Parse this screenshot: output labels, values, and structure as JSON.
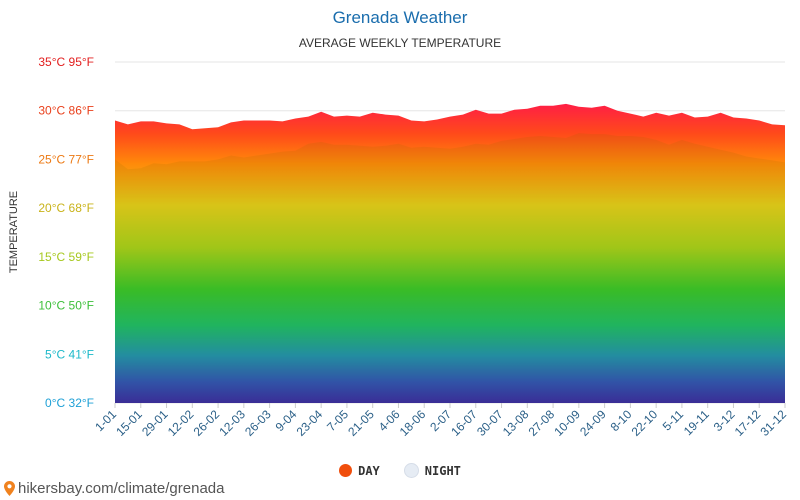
{
  "page": {
    "title": "Grenada Weather",
    "subtitle": "AVERAGE WEEKLY TEMPERATURE",
    "watermark": "hikersbay.com/climate/grenada"
  },
  "legend": {
    "day_label": "DAY",
    "night_label": "NIGHT",
    "day_color": "#f04e0c",
    "night_color": "#e6ecf4"
  },
  "chart_data": {
    "type": "area",
    "title": "Grenada Weather",
    "subtitle": "AVERAGE WEEKLY TEMPERATURE",
    "ylabel": "TEMPERATURE",
    "xlabel": "",
    "ylim": [
      0,
      35
    ],
    "y_ticks": [
      {
        "value": 0,
        "label": "0°C 32°F",
        "color": "#1ea0d6"
      },
      {
        "value": 5,
        "label": "5°C 41°F",
        "color": "#1db9c9"
      },
      {
        "value": 10,
        "label": "10°C 50°F",
        "color": "#3cbf3a"
      },
      {
        "value": 15,
        "label": "15°C 59°F",
        "color": "#a6c81e"
      },
      {
        "value": 20,
        "label": "20°C 68°F",
        "color": "#c9b31a"
      },
      {
        "value": 25,
        "label": "25°C 77°F",
        "color": "#ec7a15"
      },
      {
        "value": 30,
        "label": "30°C 86°F",
        "color": "#e9401c"
      },
      {
        "value": 35,
        "label": "35°C 95°F",
        "color": "#e21d1d"
      }
    ],
    "x_tick_labels": [
      "1-01",
      "15-01",
      "29-01",
      "12-02",
      "26-02",
      "12-03",
      "26-03",
      "9-04",
      "23-04",
      "7-05",
      "21-05",
      "4-06",
      "18-06",
      "2-07",
      "16-07",
      "30-07",
      "13-08",
      "27-08",
      "10-09",
      "24-09",
      "8-10",
      "22-10",
      "5-11",
      "19-11",
      "3-12",
      "17-12",
      "31-12"
    ],
    "grid": true,
    "legend_position": "bottom-center",
    "series": [
      {
        "name": "DAY",
        "values": [
          29.0,
          28.6,
          28.9,
          28.9,
          28.7,
          28.6,
          28.1,
          28.2,
          28.3,
          28.8,
          29.0,
          29.0,
          29.0,
          28.9,
          29.2,
          29.4,
          29.9,
          29.4,
          29.5,
          29.4,
          29.8,
          29.6,
          29.5,
          29.0,
          28.9,
          29.1,
          29.4,
          29.6,
          30.1,
          29.7,
          29.7,
          30.1,
          30.2,
          30.5,
          30.5,
          30.7,
          30.4,
          30.3,
          30.5,
          30.0,
          29.7,
          29.4,
          29.8,
          29.5,
          29.8,
          29.3,
          29.4,
          29.8,
          29.3,
          29.2,
          29.0,
          28.6,
          28.5
        ]
      },
      {
        "name": "NIGHT",
        "values": [
          25.0,
          24.0,
          24.1,
          24.6,
          24.5,
          24.8,
          24.8,
          24.8,
          25.0,
          25.4,
          25.2,
          25.4,
          25.6,
          25.8,
          25.9,
          26.6,
          26.8,
          26.5,
          26.5,
          26.4,
          26.3,
          26.4,
          26.6,
          26.2,
          26.3,
          26.2,
          26.1,
          26.3,
          26.6,
          26.5,
          26.9,
          27.1,
          27.3,
          27.4,
          27.3,
          27.2,
          27.7,
          27.6,
          27.6,
          27.4,
          27.4,
          27.3,
          27.0,
          26.5,
          27.0,
          26.6,
          26.3,
          26.0,
          25.7,
          25.3,
          25.1,
          24.9,
          24.7
        ]
      }
    ]
  }
}
